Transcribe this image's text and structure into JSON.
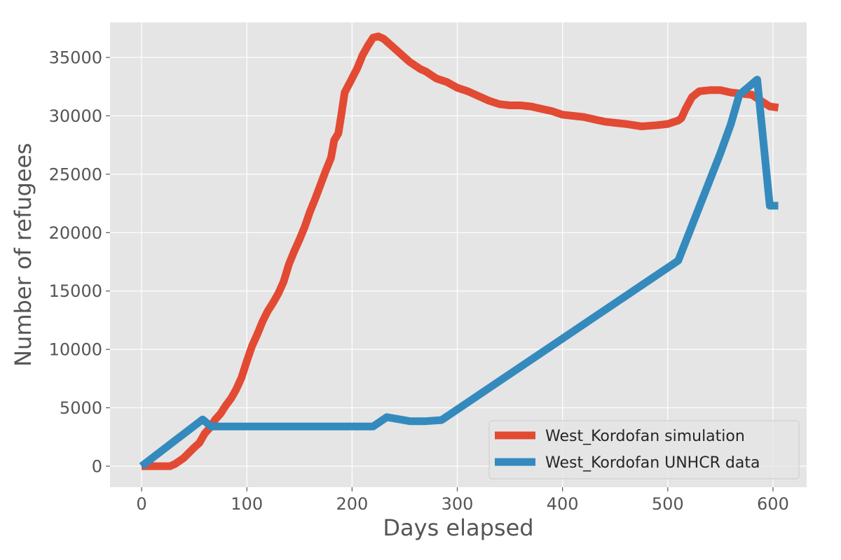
{
  "chart_data": {
    "type": "line",
    "title": "",
    "xlabel": "Days elapsed",
    "ylabel": "Number of refugees",
    "xlim": [
      -30,
      632
    ],
    "ylim": [
      -1800,
      38000
    ],
    "xticks": [
      0,
      100,
      200,
      300,
      400,
      500,
      600
    ],
    "yticks": [
      0,
      5000,
      10000,
      15000,
      20000,
      25000,
      30000,
      35000
    ],
    "grid": true,
    "legend_position": "bottom-right",
    "series": [
      {
        "name": "West_Kordofan simulation",
        "color": "#E24A33",
        "points": [
          [
            0,
            0
          ],
          [
            10,
            0
          ],
          [
            20,
            0
          ],
          [
            27,
            0
          ],
          [
            32,
            200
          ],
          [
            40,
            700
          ],
          [
            50,
            1600
          ],
          [
            55,
            2000
          ],
          [
            60,
            2800
          ],
          [
            65,
            3300
          ],
          [
            70,
            4000
          ],
          [
            75,
            4500
          ],
          [
            80,
            5200
          ],
          [
            85,
            5800
          ],
          [
            90,
            6600
          ],
          [
            95,
            7600
          ],
          [
            100,
            9000
          ],
          [
            105,
            10300
          ],
          [
            110,
            11300
          ],
          [
            115,
            12400
          ],
          [
            120,
            13300
          ],
          [
            125,
            14000
          ],
          [
            130,
            14800
          ],
          [
            135,
            15800
          ],
          [
            140,
            17300
          ],
          [
            145,
            18400
          ],
          [
            150,
            19400
          ],
          [
            155,
            20500
          ],
          [
            160,
            21800
          ],
          [
            165,
            22900
          ],
          [
            170,
            24100
          ],
          [
            175,
            25300
          ],
          [
            180,
            26400
          ],
          [
            183,
            27900
          ],
          [
            187,
            28500
          ],
          [
            190,
            30200
          ],
          [
            193,
            32000
          ],
          [
            200,
            33200
          ],
          [
            205,
            34100
          ],
          [
            210,
            35200
          ],
          [
            215,
            36000
          ],
          [
            220,
            36700
          ],
          [
            225,
            36800
          ],
          [
            230,
            36600
          ],
          [
            235,
            36200
          ],
          [
            240,
            35800
          ],
          [
            245,
            35400
          ],
          [
            250,
            35000
          ],
          [
            255,
            34600
          ],
          [
            260,
            34300
          ],
          [
            265,
            34000
          ],
          [
            270,
            33800
          ],
          [
            275,
            33500
          ],
          [
            280,
            33200
          ],
          [
            290,
            32900
          ],
          [
            300,
            32400
          ],
          [
            310,
            32100
          ],
          [
            320,
            31700
          ],
          [
            330,
            31300
          ],
          [
            340,
            31000
          ],
          [
            350,
            30900
          ],
          [
            360,
            30900
          ],
          [
            370,
            30800
          ],
          [
            380,
            30600
          ],
          [
            390,
            30400
          ],
          [
            400,
            30100
          ],
          [
            410,
            30000
          ],
          [
            420,
            29900
          ],
          [
            430,
            29700
          ],
          [
            440,
            29500
          ],
          [
            450,
            29400
          ],
          [
            460,
            29300
          ],
          [
            475,
            29100
          ],
          [
            490,
            29200
          ],
          [
            500,
            29300
          ],
          [
            510,
            29600
          ],
          [
            513,
            29800
          ],
          [
            517,
            30600
          ],
          [
            523,
            31600
          ],
          [
            530,
            32100
          ],
          [
            540,
            32200
          ],
          [
            550,
            32200
          ],
          [
            560,
            32000
          ],
          [
            570,
            31900
          ],
          [
            580,
            31800
          ],
          [
            590,
            31200
          ],
          [
            597,
            30800
          ],
          [
            605,
            30700
          ]
        ]
      },
      {
        "name": "West_Kordofan UNHCR data",
        "color": "#348ABD",
        "points": [
          [
            0,
            0
          ],
          [
            58,
            4000
          ],
          [
            66,
            3400
          ],
          [
            220,
            3400
          ],
          [
            233,
            4200
          ],
          [
            255,
            3850
          ],
          [
            270,
            3850
          ],
          [
            285,
            3950
          ],
          [
            510,
            17600
          ],
          [
            550,
            26800
          ],
          [
            560,
            29300
          ],
          [
            568,
            31800
          ],
          [
            585,
            33100
          ],
          [
            597,
            22300
          ],
          [
            605,
            22300
          ]
        ]
      }
    ]
  }
}
